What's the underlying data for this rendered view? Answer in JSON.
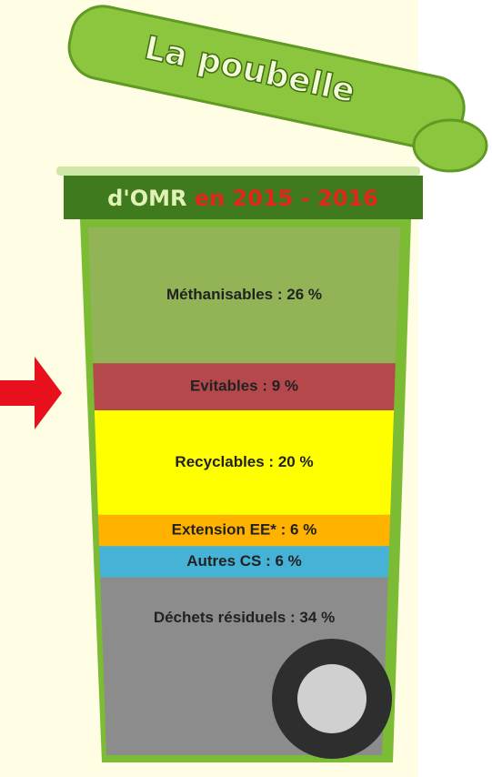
{
  "chart_data": {
    "type": "stacked-bar",
    "title": "La poubelle",
    "subtitle": "d'OMR",
    "period": "en 2015 - 2016",
    "values": [
      26,
      9,
      20,
      6,
      6,
      34
    ],
    "value_labels": [
      "Méthanisables : 26 %",
      "Evitables : 9 %",
      "Recyclables : 20 %",
      "Extension EE* : 6 %",
      "Autres CS : 6 %",
      "Déchets résiduels : 34 %"
    ],
    "colors": [
      "#92b456",
      "#b4484a",
      "#ffff00",
      "#ffb300",
      "#45b2d6",
      "#8c8c8c"
    ]
  }
}
